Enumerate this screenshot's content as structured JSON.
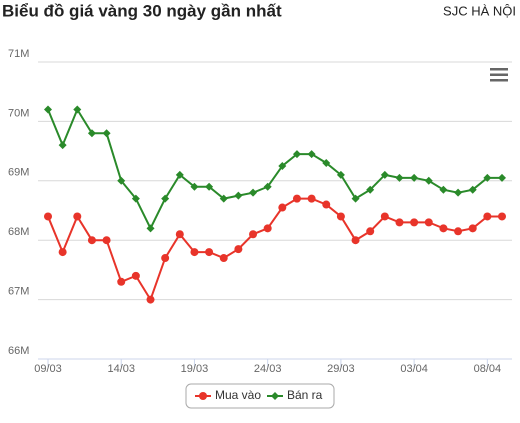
{
  "chart_data": {
    "type": "line",
    "title": "Biểu đồ giá vàng 30 ngày gần nhất",
    "subtitle": "SJC HÀ NỘI",
    "categories": [
      "09/03",
      null,
      null,
      null,
      null,
      "14/03",
      null,
      null,
      null,
      null,
      "19/03",
      null,
      null,
      null,
      null,
      "24/03",
      null,
      null,
      null,
      null,
      "29/03",
      null,
      null,
      null,
      null,
      "03/04",
      null,
      null,
      null,
      null,
      "08/04",
      null
    ],
    "series": [
      {
        "name": "Mua vào",
        "color": "#e8342a",
        "marker": "circle",
        "values": [
          68.4,
          67.8,
          68.4,
          68.0,
          68.0,
          67.3,
          67.4,
          67.0,
          67.7,
          68.1,
          67.8,
          67.8,
          67.7,
          67.85,
          68.1,
          68.2,
          68.55,
          68.7,
          68.7,
          68.6,
          68.4,
          68.0,
          68.15,
          68.4,
          68.3,
          68.3,
          68.3,
          68.2,
          68.15,
          68.2,
          68.4,
          68.4
        ]
      },
      {
        "name": "Bán ra",
        "color": "#2a8a2a",
        "marker": "diamond",
        "values": [
          70.2,
          69.6,
          70.2,
          69.8,
          69.8,
          69.0,
          68.7,
          68.2,
          68.7,
          69.1,
          68.9,
          68.9,
          68.7,
          68.75,
          68.8,
          68.9,
          69.25,
          69.45,
          69.45,
          69.3,
          69.1,
          68.7,
          68.85,
          69.1,
          69.05,
          69.05,
          69.0,
          68.85,
          68.8,
          68.85,
          69.05,
          69.05
        ]
      }
    ],
    "ylim": [
      66,
      71
    ],
    "yticks": [
      {
        "value": 66,
        "label": "66M"
      },
      {
        "value": 67,
        "label": "67M"
      },
      {
        "value": 68,
        "label": "68M"
      },
      {
        "value": 69,
        "label": "69M"
      },
      {
        "value": 70,
        "label": "70M"
      },
      {
        "value": 71,
        "label": "71M"
      }
    ],
    "grid": true,
    "legend": "bottom"
  }
}
